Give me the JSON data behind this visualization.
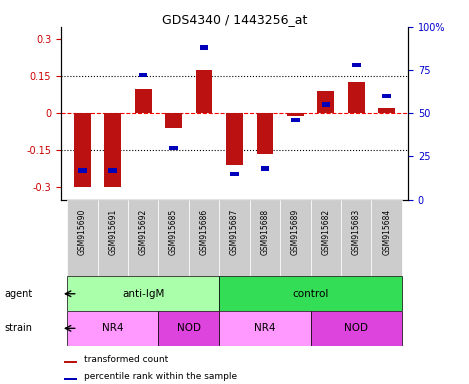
{
  "title": "GDS4340 / 1443256_at",
  "samples": [
    "GSM915690",
    "GSM915691",
    "GSM915692",
    "GSM915685",
    "GSM915686",
    "GSM915687",
    "GSM915688",
    "GSM915689",
    "GSM915682",
    "GSM915683",
    "GSM915684"
  ],
  "red_values": [
    -0.3,
    -0.3,
    0.1,
    -0.06,
    0.175,
    -0.21,
    -0.165,
    -0.01,
    0.09,
    0.125,
    0.02
  ],
  "blue_values": [
    17,
    17,
    72,
    30,
    88,
    15,
    18,
    46,
    55,
    78,
    60
  ],
  "ylim_left": [
    -0.35,
    0.35
  ],
  "ylim_right": [
    0,
    100
  ],
  "yticks_left": [
    -0.3,
    -0.15,
    0,
    0.15,
    0.3
  ],
  "yticks_right": [
    0,
    25,
    50,
    75,
    100
  ],
  "hline_dotted": [
    -0.15,
    0.15
  ],
  "agent_groups": [
    {
      "label": "anti-IgM",
      "start": 0,
      "end": 5,
      "color": "#AAFFAA"
    },
    {
      "label": "control",
      "start": 5,
      "end": 11,
      "color": "#33DD55"
    }
  ],
  "strain_groups": [
    {
      "label": "NR4",
      "start": 0,
      "end": 3,
      "color": "#FF99FF"
    },
    {
      "label": "NOD",
      "start": 3,
      "end": 5,
      "color": "#DD44DD"
    },
    {
      "label": "NR4",
      "start": 5,
      "end": 8,
      "color": "#FF99FF"
    },
    {
      "label": "NOD",
      "start": 8,
      "end": 11,
      "color": "#DD44DD"
    }
  ],
  "legend_red": "transformed count",
  "legend_blue": "percentile rank within the sample",
  "bar_color": "#BB1111",
  "dot_color": "#0000BB",
  "bar_width": 0.55,
  "tick_label_color_left": "#CC0000",
  "tick_label_color_right": "#0000CC",
  "xtick_bg_color": "#CCCCCC"
}
